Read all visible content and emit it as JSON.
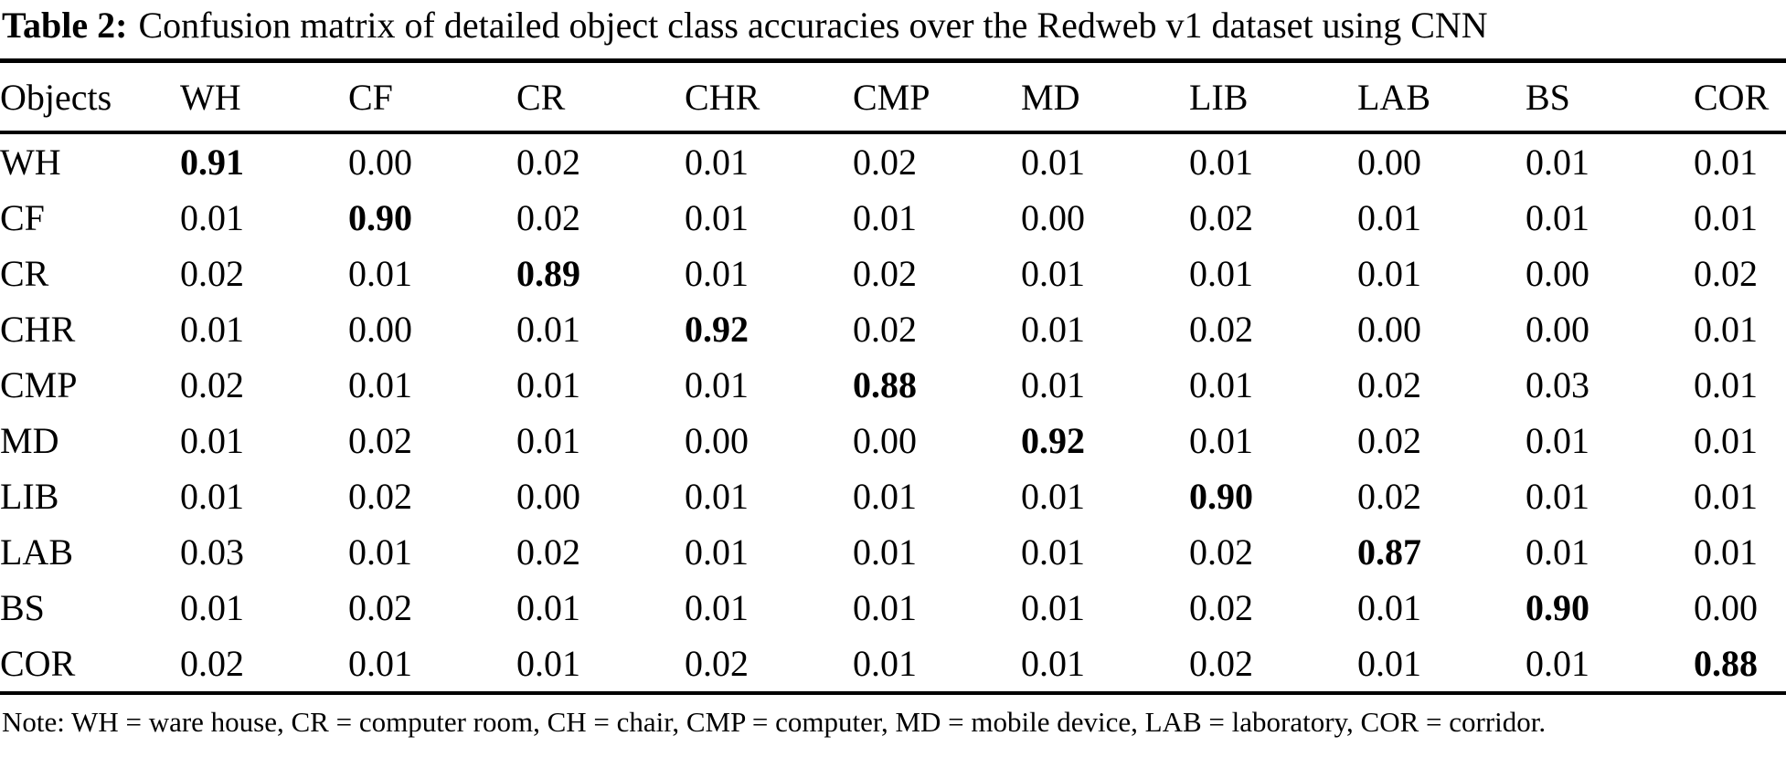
{
  "caption": {
    "label": "Table 2:",
    "text": "Confusion matrix of detailed object class accuracies over the Redweb v1 dataset using CNN"
  },
  "table": {
    "header": [
      "Objects",
      "WH",
      "CF",
      "CR",
      "CHR",
      "CMP",
      "MD",
      "LIB",
      "LAB",
      "BS",
      "COR"
    ],
    "rows": [
      {
        "label": "WH",
        "bold": 0,
        "values": [
          "0.91",
          "0.00",
          "0.02",
          "0.01",
          "0.02",
          "0.01",
          "0.01",
          "0.00",
          "0.01",
          "0.01"
        ]
      },
      {
        "label": "CF",
        "bold": 1,
        "values": [
          "0.01",
          "0.90",
          "0.02",
          "0.01",
          "0.01",
          "0.00",
          "0.02",
          "0.01",
          "0.01",
          "0.01"
        ]
      },
      {
        "label": "CR",
        "bold": 2,
        "values": [
          "0.02",
          "0.01",
          "0.89",
          "0.01",
          "0.02",
          "0.01",
          "0.01",
          "0.01",
          "0.00",
          "0.02"
        ]
      },
      {
        "label": "CHR",
        "bold": 3,
        "values": [
          "0.01",
          "0.00",
          "0.01",
          "0.92",
          "0.02",
          "0.01",
          "0.02",
          "0.00",
          "0.00",
          "0.01"
        ]
      },
      {
        "label": "CMP",
        "bold": 4,
        "values": [
          "0.02",
          "0.01",
          "0.01",
          "0.01",
          "0.88",
          "0.01",
          "0.01",
          "0.02",
          "0.03",
          "0.01"
        ]
      },
      {
        "label": "MD",
        "bold": 5,
        "values": [
          "0.01",
          "0.02",
          "0.01",
          "0.00",
          "0.00",
          "0.92",
          "0.01",
          "0.02",
          "0.01",
          "0.01"
        ]
      },
      {
        "label": "LIB",
        "bold": 6,
        "values": [
          "0.01",
          "0.02",
          "0.00",
          "0.01",
          "0.01",
          "0.01",
          "0.90",
          "0.02",
          "0.01",
          "0.01"
        ]
      },
      {
        "label": "LAB",
        "bold": 7,
        "values": [
          "0.03",
          "0.01",
          "0.02",
          "0.01",
          "0.01",
          "0.01",
          "0.02",
          "0.87",
          "0.01",
          "0.01"
        ]
      },
      {
        "label": "BS",
        "bold": 8,
        "values": [
          "0.01",
          "0.02",
          "0.01",
          "0.01",
          "0.01",
          "0.01",
          "0.02",
          "0.01",
          "0.90",
          "0.00"
        ]
      },
      {
        "label": "COR",
        "bold": 9,
        "values": [
          "0.02",
          "0.01",
          "0.01",
          "0.02",
          "0.01",
          "0.01",
          "0.02",
          "0.01",
          "0.01",
          "0.88"
        ]
      }
    ]
  },
  "note": "Note: WH = ware house, CR = computer room, CH = chair, CMP = computer, MD = mobile device, LAB = laboratory, COR = corridor."
}
